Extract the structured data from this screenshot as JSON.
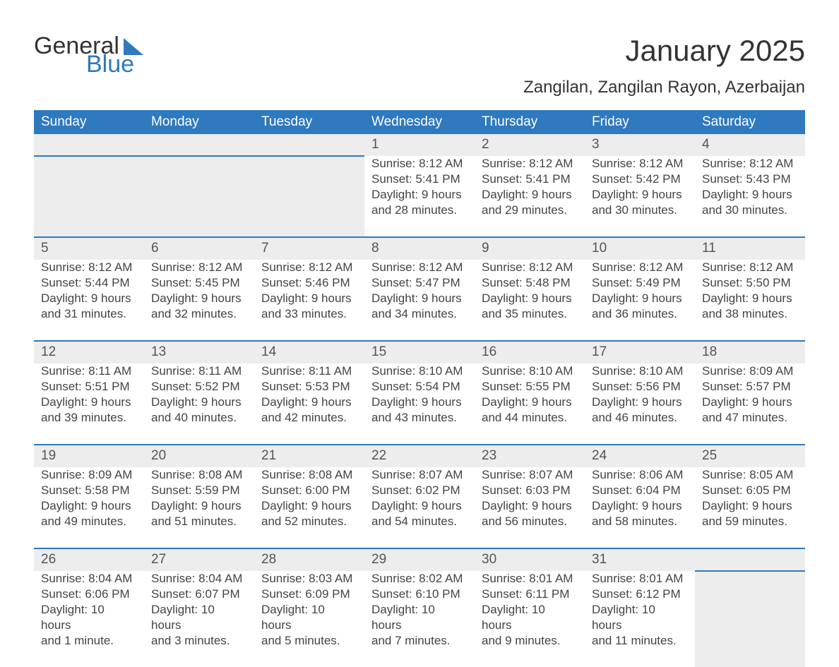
{
  "logo": {
    "word1": "General",
    "word2": "Blue"
  },
  "header": {
    "title": "January 2025",
    "subtitle": "Zangilan, Zangilan Rayon, Azerbaijan"
  },
  "colors": {
    "brand_blue": "#2f79bf",
    "row_gray": "#ededed",
    "text_dark": "#333333",
    "detail_text": "#444444",
    "background": "#ffffff"
  },
  "typography": {
    "title_fontsize": 42,
    "subtitle_fontsize": 24,
    "header_fontsize": 19,
    "daynum_fontsize": 19,
    "detail_fontsize": 17,
    "logo_fontsize": 34
  },
  "calendar": {
    "day_headers": [
      "Sunday",
      "Monday",
      "Tuesday",
      "Wednesday",
      "Thursday",
      "Friday",
      "Saturday"
    ],
    "weeks": [
      [
        null,
        null,
        null,
        {
          "n": "1",
          "l1": "Sunrise: 8:12 AM",
          "l2": "Sunset: 5:41 PM",
          "l3": "Daylight: 9 hours",
          "l4": "and 28 minutes."
        },
        {
          "n": "2",
          "l1": "Sunrise: 8:12 AM",
          "l2": "Sunset: 5:41 PM",
          "l3": "Daylight: 9 hours",
          "l4": "and 29 minutes."
        },
        {
          "n": "3",
          "l1": "Sunrise: 8:12 AM",
          "l2": "Sunset: 5:42 PM",
          "l3": "Daylight: 9 hours",
          "l4": "and 30 minutes."
        },
        {
          "n": "4",
          "l1": "Sunrise: 8:12 AM",
          "l2": "Sunset: 5:43 PM",
          "l3": "Daylight: 9 hours",
          "l4": "and 30 minutes."
        }
      ],
      [
        {
          "n": "5",
          "l1": "Sunrise: 8:12 AM",
          "l2": "Sunset: 5:44 PM",
          "l3": "Daylight: 9 hours",
          "l4": "and 31 minutes."
        },
        {
          "n": "6",
          "l1": "Sunrise: 8:12 AM",
          "l2": "Sunset: 5:45 PM",
          "l3": "Daylight: 9 hours",
          "l4": "and 32 minutes."
        },
        {
          "n": "7",
          "l1": "Sunrise: 8:12 AM",
          "l2": "Sunset: 5:46 PM",
          "l3": "Daylight: 9 hours",
          "l4": "and 33 minutes."
        },
        {
          "n": "8",
          "l1": "Sunrise: 8:12 AM",
          "l2": "Sunset: 5:47 PM",
          "l3": "Daylight: 9 hours",
          "l4": "and 34 minutes."
        },
        {
          "n": "9",
          "l1": "Sunrise: 8:12 AM",
          "l2": "Sunset: 5:48 PM",
          "l3": "Daylight: 9 hours",
          "l4": "and 35 minutes."
        },
        {
          "n": "10",
          "l1": "Sunrise: 8:12 AM",
          "l2": "Sunset: 5:49 PM",
          "l3": "Daylight: 9 hours",
          "l4": "and 36 minutes."
        },
        {
          "n": "11",
          "l1": "Sunrise: 8:12 AM",
          "l2": "Sunset: 5:50 PM",
          "l3": "Daylight: 9 hours",
          "l4": "and 38 minutes."
        }
      ],
      [
        {
          "n": "12",
          "l1": "Sunrise: 8:11 AM",
          "l2": "Sunset: 5:51 PM",
          "l3": "Daylight: 9 hours",
          "l4": "and 39 minutes."
        },
        {
          "n": "13",
          "l1": "Sunrise: 8:11 AM",
          "l2": "Sunset: 5:52 PM",
          "l3": "Daylight: 9 hours",
          "l4": "and 40 minutes."
        },
        {
          "n": "14",
          "l1": "Sunrise: 8:11 AM",
          "l2": "Sunset: 5:53 PM",
          "l3": "Daylight: 9 hours",
          "l4": "and 42 minutes."
        },
        {
          "n": "15",
          "l1": "Sunrise: 8:10 AM",
          "l2": "Sunset: 5:54 PM",
          "l3": "Daylight: 9 hours",
          "l4": "and 43 minutes."
        },
        {
          "n": "16",
          "l1": "Sunrise: 8:10 AM",
          "l2": "Sunset: 5:55 PM",
          "l3": "Daylight: 9 hours",
          "l4": "and 44 minutes."
        },
        {
          "n": "17",
          "l1": "Sunrise: 8:10 AM",
          "l2": "Sunset: 5:56 PM",
          "l3": "Daylight: 9 hours",
          "l4": "and 46 minutes."
        },
        {
          "n": "18",
          "l1": "Sunrise: 8:09 AM",
          "l2": "Sunset: 5:57 PM",
          "l3": "Daylight: 9 hours",
          "l4": "and 47 minutes."
        }
      ],
      [
        {
          "n": "19",
          "l1": "Sunrise: 8:09 AM",
          "l2": "Sunset: 5:58 PM",
          "l3": "Daylight: 9 hours",
          "l4": "and 49 minutes."
        },
        {
          "n": "20",
          "l1": "Sunrise: 8:08 AM",
          "l2": "Sunset: 5:59 PM",
          "l3": "Daylight: 9 hours",
          "l4": "and 51 minutes."
        },
        {
          "n": "21",
          "l1": "Sunrise: 8:08 AM",
          "l2": "Sunset: 6:00 PM",
          "l3": "Daylight: 9 hours",
          "l4": "and 52 minutes."
        },
        {
          "n": "22",
          "l1": "Sunrise: 8:07 AM",
          "l2": "Sunset: 6:02 PM",
          "l3": "Daylight: 9 hours",
          "l4": "and 54 minutes."
        },
        {
          "n": "23",
          "l1": "Sunrise: 8:07 AM",
          "l2": "Sunset: 6:03 PM",
          "l3": "Daylight: 9 hours",
          "l4": "and 56 minutes."
        },
        {
          "n": "24",
          "l1": "Sunrise: 8:06 AM",
          "l2": "Sunset: 6:04 PM",
          "l3": "Daylight: 9 hours",
          "l4": "and 58 minutes."
        },
        {
          "n": "25",
          "l1": "Sunrise: 8:05 AM",
          "l2": "Sunset: 6:05 PM",
          "l3": "Daylight: 9 hours",
          "l4": "and 59 minutes."
        }
      ],
      [
        {
          "n": "26",
          "l1": "Sunrise: 8:04 AM",
          "l2": "Sunset: 6:06 PM",
          "l3": "Daylight: 10 hours",
          "l4": "and 1 minute."
        },
        {
          "n": "27",
          "l1": "Sunrise: 8:04 AM",
          "l2": "Sunset: 6:07 PM",
          "l3": "Daylight: 10 hours",
          "l4": "and 3 minutes."
        },
        {
          "n": "28",
          "l1": "Sunrise: 8:03 AM",
          "l2": "Sunset: 6:09 PM",
          "l3": "Daylight: 10 hours",
          "l4": "and 5 minutes."
        },
        {
          "n": "29",
          "l1": "Sunrise: 8:02 AM",
          "l2": "Sunset: 6:10 PM",
          "l3": "Daylight: 10 hours",
          "l4": "and 7 minutes."
        },
        {
          "n": "30",
          "l1": "Sunrise: 8:01 AM",
          "l2": "Sunset: 6:11 PM",
          "l3": "Daylight: 10 hours",
          "l4": "and 9 minutes."
        },
        {
          "n": "31",
          "l1": "Sunrise: 8:01 AM",
          "l2": "Sunset: 6:12 PM",
          "l3": "Daylight: 10 hours",
          "l4": "and 11 minutes."
        },
        null
      ]
    ]
  }
}
